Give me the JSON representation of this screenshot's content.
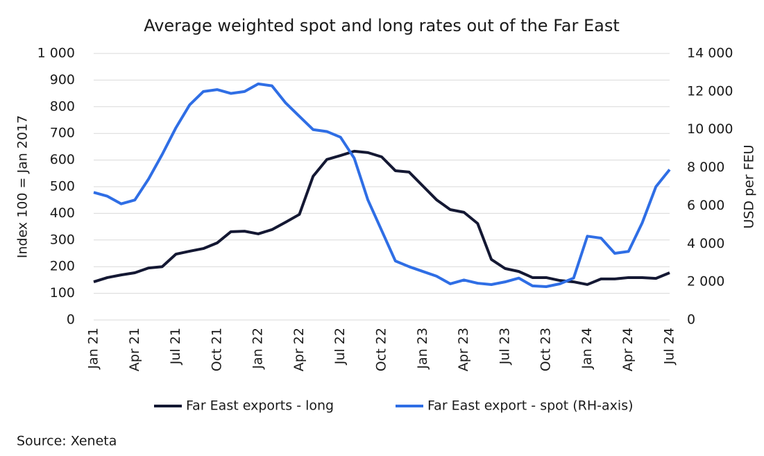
{
  "chart_data": {
    "type": "line",
    "title": "Average weighted spot and long rates out of the Far East",
    "y_label": "Index 100 = Jan 2017",
    "y2_label": "USD per FEU",
    "source": "Source: Xeneta",
    "categories": [
      "Jan 21",
      null,
      null,
      "Apr 21",
      null,
      null,
      "Jul 21",
      null,
      null,
      "Oct 21",
      null,
      null,
      "Jan 22",
      null,
      null,
      "Apr 22",
      null,
      null,
      "Jul 22",
      null,
      null,
      "Oct 22",
      null,
      null,
      "Jan 23",
      null,
      null,
      "Apr 23",
      null,
      null,
      "Jul 23",
      null,
      null,
      "Oct 23",
      null,
      null,
      "Jan 24",
      null,
      null,
      "Apr 24",
      null,
      null,
      "Jul 24"
    ],
    "series": [
      {
        "name": "Far East exports - long",
        "color": "#141833",
        "values": [
          143,
          159,
          169,
          177,
          195,
          200,
          247,
          258,
          268,
          289,
          331,
          333,
          323,
          339,
          367,
          396,
          539,
          602,
          617,
          633,
          628,
          612,
          560,
          555,
          503,
          451,
          414,
          404,
          362,
          227,
          193,
          182,
          159,
          159,
          148,
          143,
          133,
          154,
          154,
          159,
          159,
          156,
          177
        ]
      },
      {
        "name": "Far East export - spot (RH-axis)",
        "color": "#2f6ee5",
        "axis": "y2",
        "values": [
          6700,
          6500,
          6100,
          6300,
          7400,
          8700,
          10100,
          11300,
          12000,
          12100,
          11900,
          12000,
          12400,
          12300,
          11400,
          10700,
          10000,
          9900,
          9600,
          8500,
          6300,
          4700,
          3100,
          2800,
          2550,
          2300,
          1900,
          2100,
          1930,
          1860,
          2000,
          2200,
          1790,
          1750,
          1900,
          2200,
          4400,
          4300,
          3500,
          3600,
          5100,
          7000,
          7900
        ]
      }
    ],
    "ylim": [
      0,
      1000
    ],
    "yticks": [
      0,
      100,
      200,
      300,
      400,
      500,
      600,
      700,
      800,
      900,
      {
        "value": 1000,
        "label": "1 000"
      }
    ],
    "y2lim": [
      0,
      14000
    ],
    "y2ticks": [
      0,
      {
        "value": 2000,
        "label": "2 000"
      },
      {
        "value": 4000,
        "label": "4 000"
      },
      {
        "value": 6000,
        "label": "6 000"
      },
      {
        "value": 8000,
        "label": "8 000"
      },
      {
        "value": 10000,
        "label": "10 000"
      },
      {
        "value": 12000,
        "label": "12 000"
      },
      {
        "value": 14000,
        "label": "14 000"
      }
    ],
    "grid": true,
    "legend": "bottom"
  }
}
